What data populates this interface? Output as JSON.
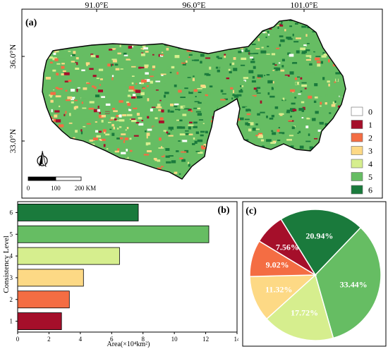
{
  "map": {
    "panel_label": "(a)",
    "top_ticks": [
      "91.0°E",
      "96.0°E",
      "101.0°E"
    ],
    "left_ticks": [
      "36.0°N",
      "33.0°N"
    ],
    "scalebar": {
      "labels": [
        "0",
        "100",
        "200 KM"
      ]
    },
    "legend": [
      {
        "label": "0",
        "color": "#ffffff"
      },
      {
        "label": "1",
        "color": "#a50f2a"
      },
      {
        "label": "2",
        "color": "#f46d43"
      },
      {
        "label": "3",
        "color": "#fdd985"
      },
      {
        "label": "4",
        "color": "#d6ee8e"
      },
      {
        "label": "5",
        "color": "#66bd63"
      },
      {
        "label": "6",
        "color": "#1a7a3c"
      }
    ]
  },
  "chart_data": [
    {
      "type": "bar",
      "orientation": "horizontal",
      "panel_label": "(b)",
      "categories": [
        "1",
        "2",
        "3",
        "4",
        "5",
        "6"
      ],
      "values": [
        2.8,
        3.3,
        4.2,
        6.5,
        12.2,
        7.7
      ],
      "colors": [
        "#a50f2a",
        "#f46d43",
        "#fdd985",
        "#d6ee8e",
        "#66bd63",
        "#1a7a3c"
      ],
      "xlabel": "Area(×10⁴km²)",
      "ylabel": "Consistency Level",
      "xlim": [
        0,
        14
      ],
      "xticks": [
        "0",
        "2",
        "4",
        "6",
        "8",
        "10",
        "12",
        "14"
      ]
    },
    {
      "type": "pie",
      "panel_label": "(c)",
      "slices": [
        {
          "label": "1",
          "value": 7.56,
          "text": "7.56%",
          "color": "#a50f2a"
        },
        {
          "label": "2",
          "value": 9.02,
          "text": "9.02%",
          "color": "#f46d43"
        },
        {
          "label": "3",
          "value": 11.32,
          "text": "11.32%",
          "color": "#fdd985"
        },
        {
          "label": "4",
          "value": 17.72,
          "text": "17.72%",
          "color": "#d6ee8e"
        },
        {
          "label": "5",
          "value": 33.44,
          "text": "33.44%",
          "color": "#66bd63"
        },
        {
          "label": "6",
          "value": 20.94,
          "text": "20.94%",
          "color": "#1a7a3c"
        }
      ]
    }
  ]
}
